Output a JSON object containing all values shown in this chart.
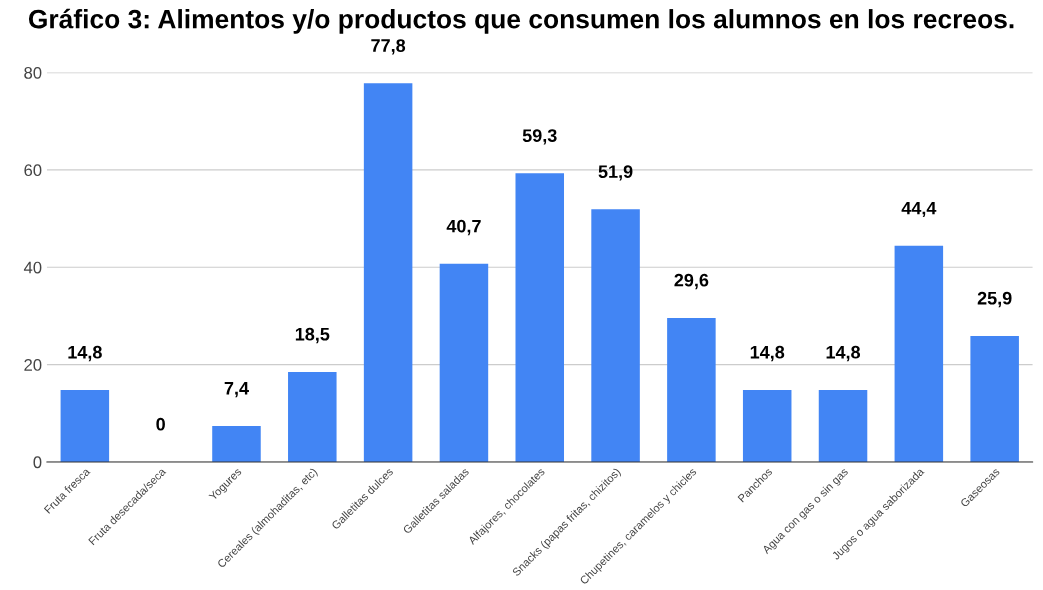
{
  "chart_data": {
    "type": "bar",
    "title": "Gráfico 3: Alimentos y/o productos que consumen los alumnos en los recreos.",
    "categories": [
      "Fruta fresca",
      "Fruta desecada/seca",
      "Yogures",
      "Cereales (almohaditas, etc)",
      "Galletitas dulces",
      "Galletitas saladas",
      "Alfajores, chocolates",
      "Snacks (papas fritas, chizitos)",
      "Chupetines, caramelos y chicles",
      "Panchos",
      "Agua con gas o sin gas",
      "Jugos o agua saborizada",
      "Gaseosas"
    ],
    "values": [
      14.8,
      0,
      7.4,
      18.5,
      77.8,
      40.7,
      59.3,
      51.9,
      29.6,
      14.8,
      14.8,
      44.4,
      25.9
    ],
    "value_labels": [
      "14,8",
      "0",
      "7,4",
      "18,5",
      "77,8",
      "40,7",
      "59,3",
      "51,9",
      "29,6",
      "14,8",
      "14,8",
      "44,4",
      "25,9"
    ],
    "color": "#4285f4",
    "ylim": [
      0,
      80
    ],
    "yticks": [
      0,
      20,
      40,
      60,
      80
    ],
    "grid": "y",
    "legend": false
  }
}
